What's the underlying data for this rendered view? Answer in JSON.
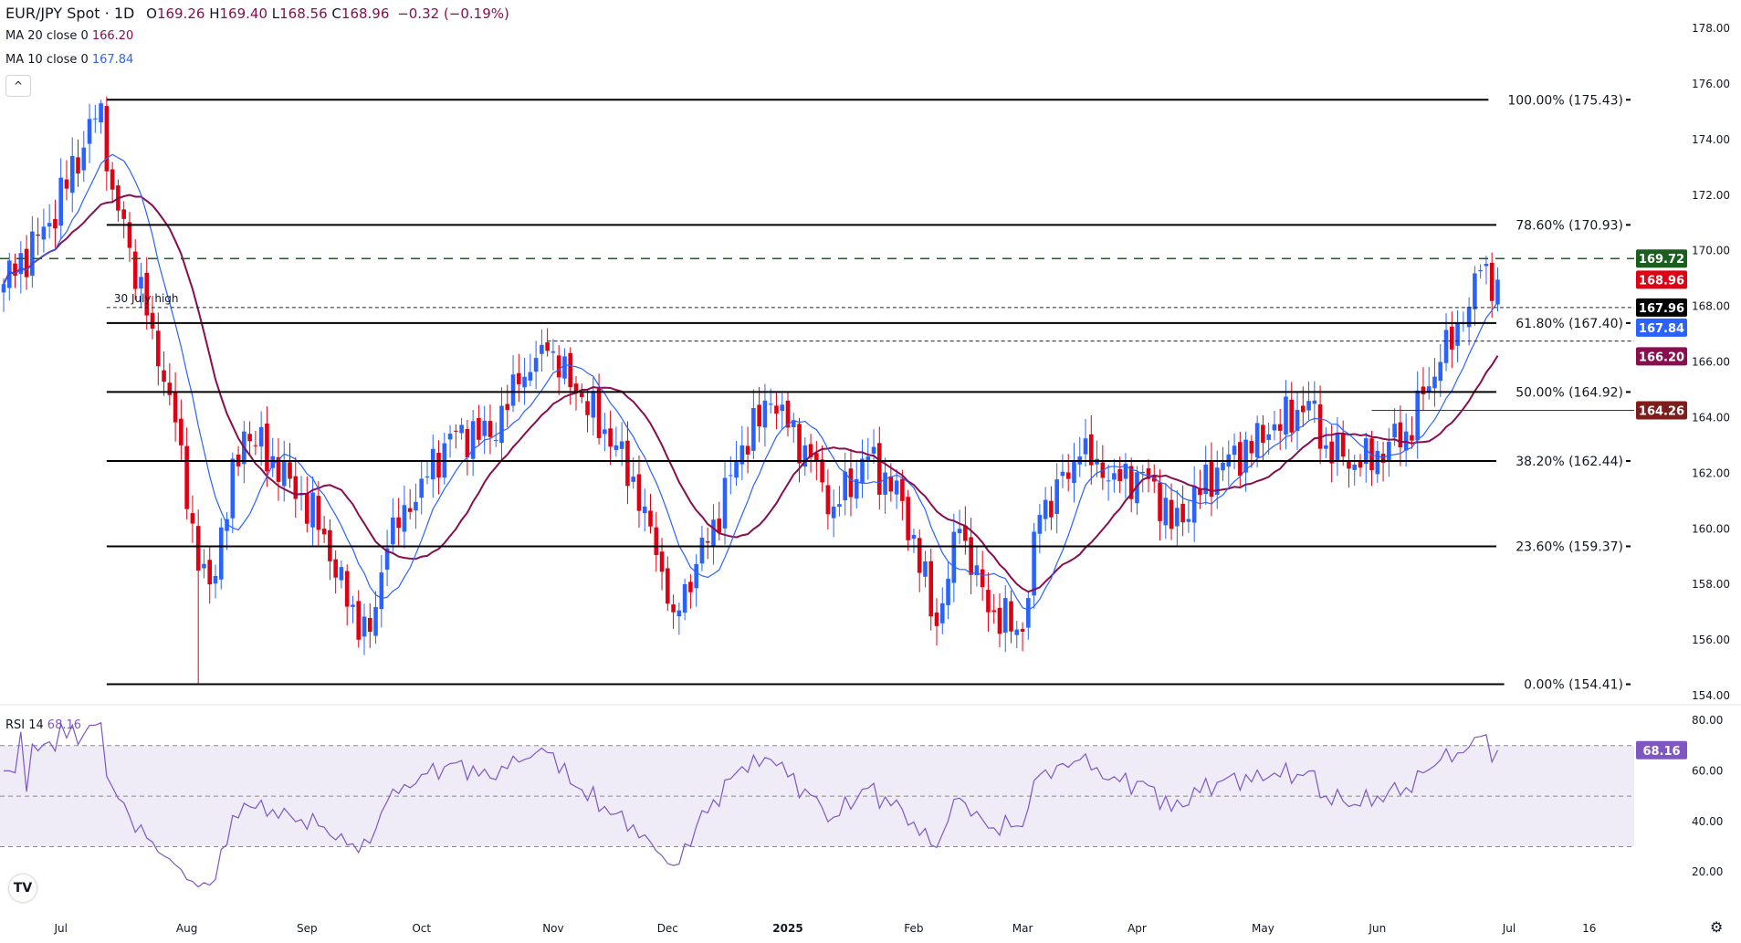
{
  "header": {
    "symbol": "EUR/JPY Spot · 1D",
    "open_label": "O",
    "open": "169.26",
    "high_label": "H",
    "high": "169.40",
    "low_label": "L",
    "low": "168.56",
    "close_label": "C",
    "close": "168.96",
    "change": "−0.32 (−0.19%)"
  },
  "indicators": {
    "ma20_label": "MA 20 close 0",
    "ma20_value": "166.20",
    "ma10_label": "MA 10 close 0",
    "ma10_value": "167.84",
    "rsi_label": "RSI 14",
    "rsi_value": "68.16"
  },
  "collapse_icon": "^",
  "logo": "TV",
  "settings_icon": "⚙",
  "colors": {
    "up": "#2962ff",
    "down": "#e00013",
    "ma10": "#2962ff",
    "ma20": "#880e4f",
    "rsi": "#7e57c2",
    "rsi_band": "#efecf8"
  },
  "chart_data": {
    "type": "candlestick",
    "title": "EUR/JPY Spot · 1D",
    "ylim": [
      154,
      178.5
    ],
    "y_ticks": [
      "178.00",
      "176.00",
      "174.00",
      "172.00",
      "170.00",
      "168.00",
      "166.00",
      "164.00",
      "162.00",
      "160.00",
      "158.00",
      "156.00",
      "154.00"
    ],
    "x_ticks": [
      {
        "label": "Jul",
        "bar": 10
      },
      {
        "label": "Aug",
        "bar": 32
      },
      {
        "label": "Sep",
        "bar": 53
      },
      {
        "label": "Oct",
        "bar": 73
      },
      {
        "label": "Nov",
        "bar": 96
      },
      {
        "label": "Dec",
        "bar": 116
      },
      {
        "label": "2025",
        "bar": 137
      },
      {
        "label": "Feb",
        "bar": 159
      },
      {
        "label": "Mar",
        "bar": 178
      },
      {
        "label": "Apr",
        "bar": 198
      },
      {
        "label": "May",
        "bar": 220
      },
      {
        "label": "Jun",
        "bar": 240
      },
      {
        "label": "Jul",
        "bar": 263
      },
      {
        "label": "16",
        "bar": 277
      }
    ],
    "close_keyframes": [
      [
        0,
        168.8
      ],
      [
        8,
        171
      ],
      [
        17,
        175.3
      ],
      [
        19,
        172.2
      ],
      [
        26,
        167.2
      ],
      [
        31,
        163
      ],
      [
        34,
        158.5
      ],
      [
        36,
        158
      ],
      [
        42,
        163.5
      ],
      [
        50,
        161.8
      ],
      [
        56,
        159.8
      ],
      [
        60,
        157.2
      ],
      [
        64,
        156.3
      ],
      [
        67,
        159.3
      ],
      [
        73,
        161.8
      ],
      [
        79,
        163.5
      ],
      [
        85,
        163.3
      ],
      [
        90,
        165.2
      ],
      [
        95,
        166.4
      ],
      [
        100,
        164.9
      ],
      [
        107,
        163
      ],
      [
        112,
        160.8
      ],
      [
        117,
        157
      ],
      [
        123,
        159.5
      ],
      [
        129,
        163
      ],
      [
        134,
        164.5
      ],
      [
        140,
        163
      ],
      [
        145,
        160.8
      ],
      [
        151,
        162.6
      ],
      [
        157,
        161
      ],
      [
        163,
        156.5
      ],
      [
        167,
        160
      ],
      [
        172,
        157
      ],
      [
        178,
        156.3
      ],
      [
        181,
        160.5
      ],
      [
        188,
        162.6
      ],
      [
        194,
        162
      ],
      [
        201,
        161.7
      ],
      [
        204,
        160
      ],
      [
        212,
        162.2
      ],
      [
        221,
        163.4
      ],
      [
        228,
        164.6
      ],
      [
        231,
        163
      ],
      [
        237,
        162.2
      ],
      [
        245,
        163.5
      ],
      [
        251,
        166
      ],
      [
        255,
        167.4
      ],
      [
        258,
        169.3
      ],
      [
        261,
        168.96
      ]
    ],
    "fib_levels": [
      {
        "label": "100.00% (175.43)",
        "price": 175.43
      },
      {
        "label": "78.60% (170.93)",
        "price": 170.93
      },
      {
        "label": "61.80% (167.40)",
        "price": 167.4
      },
      {
        "label": "50.00% (164.92)",
        "price": 164.92
      },
      {
        "label": "38.20% (162.44)",
        "price": 162.44
      },
      {
        "label": "23.60% (159.37)",
        "price": 159.37
      },
      {
        "label": "0.00% (154.41)",
        "price": 154.41
      }
    ],
    "annotation": {
      "text": "30 July high",
      "price": 167.96
    },
    "price_tags": [
      {
        "value": "169.72",
        "price": 169.72,
        "color": "#1b5e20"
      },
      {
        "value": "168.96",
        "price": 168.96,
        "color": "#e00013"
      },
      {
        "value": "167.96",
        "price": 167.96,
        "color": "#000000"
      },
      {
        "value": "167.84",
        "price": 167.84,
        "color": "#2962ff"
      },
      {
        "value": "166.20",
        "price": 166.2,
        "color": "#880e4f"
      },
      {
        "value": "164.26",
        "price": 164.26,
        "color": "#7f1d1d"
      }
    ],
    "horizontal_lines": [
      {
        "price": 169.72,
        "style": "dashed-green",
        "from_bar": 0
      },
      {
        "price": 167.96,
        "style": "dotted",
        "from_bar": 18
      },
      {
        "price": 166.75,
        "style": "dotted",
        "from_bar": 95
      },
      {
        "price": 164.26,
        "style": "red",
        "from_bar": 239
      }
    ],
    "rsi": {
      "ylim": [
        10,
        85
      ],
      "ticks": [
        "80.00",
        "60.00",
        "40.00",
        "20.00"
      ],
      "levels": [
        70,
        50,
        30
      ],
      "last": "68.16"
    }
  }
}
